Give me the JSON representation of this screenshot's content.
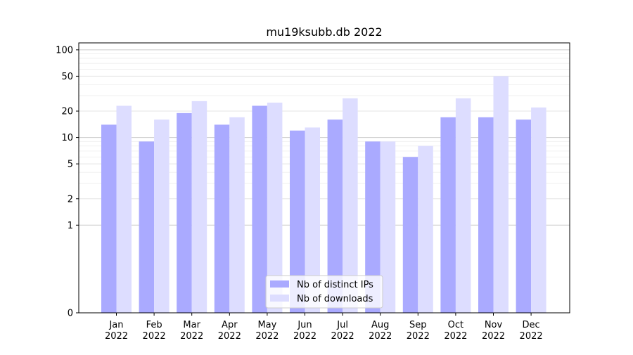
{
  "chart_data": {
    "type": "bar",
    "title": "mu19ksubb.db 2022",
    "xlabel": "",
    "ylabel": "",
    "y_scale": "symlog",
    "ylim": [
      0,
      120
    ],
    "y_ticks": [
      0,
      1,
      2,
      5,
      10,
      20,
      50,
      100
    ],
    "y_tick_labels": [
      "0",
      "1",
      "2",
      "5",
      "10",
      "20",
      "50",
      "100"
    ],
    "categories": [
      "Jan\n2022",
      "Feb\n2022",
      "Mar\n2022",
      "Apr\n2022",
      "May\n2022",
      "Jun\n2022",
      "Jul\n2022",
      "Aug\n2022",
      "Sep\n2022",
      "Oct\n2022",
      "Nov\n2022",
      "Dec\n2022"
    ],
    "series": [
      {
        "name": "Nb of distinct IPs",
        "color": "#aaaaff",
        "values": [
          14,
          9,
          19,
          14,
          23,
          12,
          16,
          9,
          6,
          17,
          17,
          16
        ]
      },
      {
        "name": "Nb of downloads",
        "color": "#ddddff",
        "values": [
          23,
          16,
          26,
          17,
          25,
          13,
          28,
          9,
          8,
          28,
          50,
          22
        ]
      }
    ],
    "legend_position": "bottom-center",
    "grid": true
  }
}
